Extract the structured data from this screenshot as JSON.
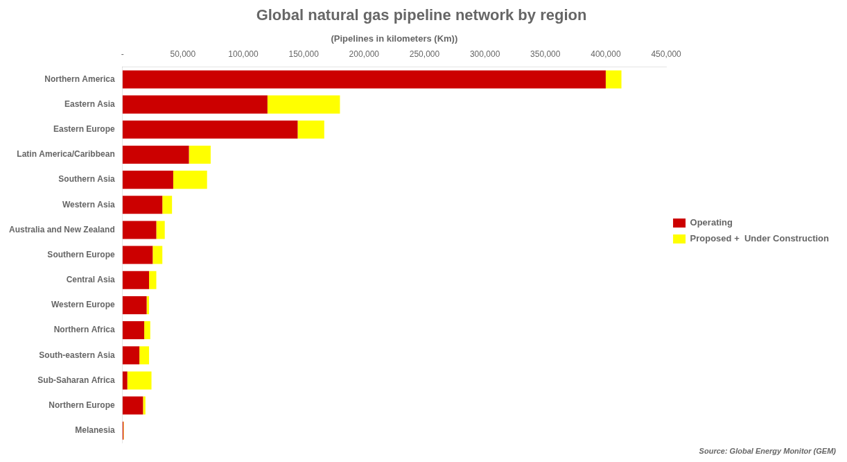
{
  "chart_data": {
    "type": "bar",
    "orientation": "horizontal",
    "stacked": true,
    "title": "Global natural gas pipeline network by region",
    "x_label": "(Pipelines in kilometers (Km))",
    "categories": [
      "Northern America",
      "Eastern Asia",
      "Eastern Europe",
      "Latin America/Caribbean",
      "Southern Asia",
      "Western Asia",
      "Australia and New Zealand",
      "Southern Europe",
      "Central Asia",
      "Western Europe",
      "Northern Africa",
      "South-eastern Asia",
      "Sub-Saharan Africa",
      "Northern Europe",
      "Melanesia"
    ],
    "series": [
      {
        "name": "Operating",
        "color": "#cc0000",
        "values": [
          400000,
          120000,
          145000,
          55000,
          42000,
          33000,
          28000,
          25000,
          22000,
          20000,
          18000,
          14000,
          4000,
          17000,
          800
        ]
      },
      {
        "name": "Proposed +  Under Construction",
        "color": "#ffff00",
        "values": [
          13000,
          60000,
          22000,
          18000,
          28000,
          8000,
          7000,
          8000,
          6000,
          2000,
          5000,
          8000,
          20000,
          2000,
          300
        ]
      }
    ],
    "xlim": [
      0,
      450000
    ],
    "xticks": [
      {
        "value": 0,
        "label": "-"
      },
      {
        "value": 50000,
        "label": "50,000"
      },
      {
        "value": 100000,
        "label": "100,000"
      },
      {
        "value": 150000,
        "label": "150,000"
      },
      {
        "value": 200000,
        "label": "200,000"
      },
      {
        "value": 250000,
        "label": "250,000"
      },
      {
        "value": 300000,
        "label": "300,000"
      },
      {
        "value": 350000,
        "label": "350,000"
      },
      {
        "value": 400000,
        "label": "400,000"
      },
      {
        "value": 450000,
        "label": "450,000"
      }
    ],
    "grid": false,
    "legend": "right",
    "annotations": [
      "Source: Global Energy Monitor (GEM)"
    ]
  }
}
